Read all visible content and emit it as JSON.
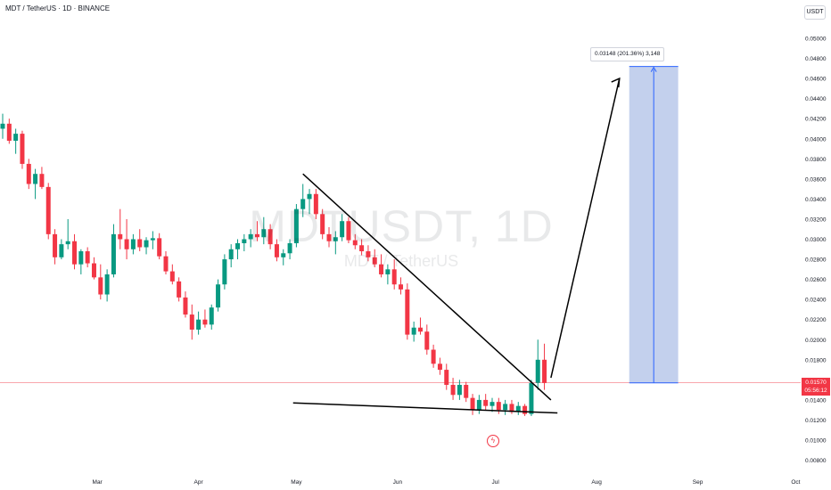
{
  "header": {
    "title": "MDT / TetherUS · 1D · BINANCE"
  },
  "currency_badge": "USDT",
  "watermark": {
    "symbol": "MDTUSDT, 1D",
    "name": "MDT / TetherUS"
  },
  "target_label": "0.03148 (201.36%) 3,148",
  "current_price": {
    "price": "0.01570",
    "countdown": "05:56:12"
  },
  "icons": {
    "flash": "flash-icon"
  },
  "colors": {
    "up": "#089981",
    "down": "#f23645",
    "target_fill": "#7b97d6",
    "target_line": "#2962ff",
    "price_line": "#f23645",
    "drawing": "#000000"
  },
  "chart_data": {
    "type": "candlestick",
    "timeframe": "1D",
    "exchange": "BINANCE",
    "y_axis": {
      "scale": "linear",
      "ticks": [
        "0.00800",
        "0.01000",
        "0.01200",
        "0.01400",
        "0.01600",
        "0.01800",
        "0.02000",
        "0.02200",
        "0.02400",
        "0.02600",
        "0.02800",
        "0.03000",
        "0.03200",
        "0.03400",
        "0.03600",
        "0.03800",
        "0.04000",
        "0.04200",
        "0.04400",
        "0.04600",
        "0.04800",
        "0.05000"
      ]
    },
    "x_axis": {
      "ticks": [
        "Mar",
        "Apr",
        "May",
        "Jun",
        "Jul",
        "Aug",
        "Sep",
        "Oct"
      ]
    },
    "grid": false,
    "candles": [
      {
        "d": "2024-02-01",
        "o": 0.041,
        "h": 0.0425,
        "l": 0.04,
        "c": 0.0415
      },
      {
        "d": "2024-02-03",
        "o": 0.0415,
        "h": 0.042,
        "l": 0.0395,
        "c": 0.0398
      },
      {
        "d": "2024-02-05",
        "o": 0.0398,
        "h": 0.041,
        "l": 0.0385,
        "c": 0.0405
      },
      {
        "d": "2024-02-07",
        "o": 0.0405,
        "h": 0.0408,
        "l": 0.037,
        "c": 0.0375
      },
      {
        "d": "2024-02-09",
        "o": 0.0375,
        "h": 0.038,
        "l": 0.035,
        "c": 0.0355
      },
      {
        "d": "2024-02-11",
        "o": 0.0355,
        "h": 0.037,
        "l": 0.034,
        "c": 0.0365
      },
      {
        "d": "2024-02-13",
        "o": 0.0365,
        "h": 0.0372,
        "l": 0.035,
        "c": 0.0352
      },
      {
        "d": "2024-02-15",
        "o": 0.0352,
        "h": 0.0356,
        "l": 0.03,
        "c": 0.0305
      },
      {
        "d": "2024-02-17",
        "o": 0.0305,
        "h": 0.031,
        "l": 0.0275,
        "c": 0.0282
      },
      {
        "d": "2024-02-19",
        "o": 0.0282,
        "h": 0.03,
        "l": 0.028,
        "c": 0.0295
      },
      {
        "d": "2024-02-21",
        "o": 0.0295,
        "h": 0.032,
        "l": 0.029,
        "c": 0.0298
      },
      {
        "d": "2024-02-23",
        "o": 0.0298,
        "h": 0.0305,
        "l": 0.027,
        "c": 0.0275
      },
      {
        "d": "2024-02-25",
        "o": 0.0275,
        "h": 0.029,
        "l": 0.0265,
        "c": 0.0288
      },
      {
        "d": "2024-02-27",
        "o": 0.0288,
        "h": 0.0292,
        "l": 0.0272,
        "c": 0.0276
      },
      {
        "d": "2024-02-29",
        "o": 0.0276,
        "h": 0.0282,
        "l": 0.026,
        "c": 0.0262
      },
      {
        "d": "2024-03-02",
        "o": 0.0262,
        "h": 0.0275,
        "l": 0.024,
        "c": 0.0245
      },
      {
        "d": "2024-03-04",
        "o": 0.0245,
        "h": 0.027,
        "l": 0.0238,
        "c": 0.0265
      },
      {
        "d": "2024-03-06",
        "o": 0.0265,
        "h": 0.0315,
        "l": 0.0262,
        "c": 0.0305
      },
      {
        "d": "2024-03-08",
        "o": 0.0305,
        "h": 0.033,
        "l": 0.029,
        "c": 0.03
      },
      {
        "d": "2024-03-10",
        "o": 0.03,
        "h": 0.032,
        "l": 0.028,
        "c": 0.029
      },
      {
        "d": "2024-03-12",
        "o": 0.029,
        "h": 0.0305,
        "l": 0.0285,
        "c": 0.03
      },
      {
        "d": "2024-03-14",
        "o": 0.03,
        "h": 0.031,
        "l": 0.0288,
        "c": 0.0292
      },
      {
        "d": "2024-03-16",
        "o": 0.0292,
        "h": 0.0302,
        "l": 0.0285,
        "c": 0.0299
      },
      {
        "d": "2024-03-18",
        "o": 0.0299,
        "h": 0.0308,
        "l": 0.029,
        "c": 0.0301
      },
      {
        "d": "2024-03-20",
        "o": 0.0301,
        "h": 0.0306,
        "l": 0.028,
        "c": 0.0283
      },
      {
        "d": "2024-03-22",
        "o": 0.0283,
        "h": 0.0288,
        "l": 0.0265,
        "c": 0.0268
      },
      {
        "d": "2024-03-24",
        "o": 0.0268,
        "h": 0.0275,
        "l": 0.0255,
        "c": 0.0258
      },
      {
        "d": "2024-03-26",
        "o": 0.0258,
        "h": 0.0262,
        "l": 0.0238,
        "c": 0.0242
      },
      {
        "d": "2024-03-28",
        "o": 0.0242,
        "h": 0.0248,
        "l": 0.0222,
        "c": 0.0225
      },
      {
        "d": "2024-03-30",
        "o": 0.0225,
        "h": 0.0235,
        "l": 0.02,
        "c": 0.021
      },
      {
        "d": "2024-04-01",
        "o": 0.021,
        "h": 0.0228,
        "l": 0.0205,
        "c": 0.022
      },
      {
        "d": "2024-04-03",
        "o": 0.022,
        "h": 0.023,
        "l": 0.0212,
        "c": 0.0215
      },
      {
        "d": "2024-04-05",
        "o": 0.0215,
        "h": 0.0235,
        "l": 0.021,
        "c": 0.0232
      },
      {
        "d": "2024-04-07",
        "o": 0.0232,
        "h": 0.026,
        "l": 0.0228,
        "c": 0.0255
      },
      {
        "d": "2024-04-09",
        "o": 0.0255,
        "h": 0.0285,
        "l": 0.025,
        "c": 0.028
      },
      {
        "d": "2024-04-11",
        "o": 0.028,
        "h": 0.0295,
        "l": 0.0272,
        "c": 0.029
      },
      {
        "d": "2024-04-13",
        "o": 0.029,
        "h": 0.03,
        "l": 0.028,
        "c": 0.0296
      },
      {
        "d": "2024-04-15",
        "o": 0.0296,
        "h": 0.0305,
        "l": 0.0288,
        "c": 0.03
      },
      {
        "d": "2024-04-17",
        "o": 0.03,
        "h": 0.031,
        "l": 0.0292,
        "c": 0.0305
      },
      {
        "d": "2024-04-19",
        "o": 0.0305,
        "h": 0.0318,
        "l": 0.0298,
        "c": 0.0302
      },
      {
        "d": "2024-04-21",
        "o": 0.0302,
        "h": 0.0322,
        "l": 0.0295,
        "c": 0.031
      },
      {
        "d": "2024-04-23",
        "o": 0.031,
        "h": 0.0315,
        "l": 0.029,
        "c": 0.0295
      },
      {
        "d": "2024-04-25",
        "o": 0.0295,
        "h": 0.03,
        "l": 0.0278,
        "c": 0.0282
      },
      {
        "d": "2024-04-27",
        "o": 0.0282,
        "h": 0.029,
        "l": 0.0274,
        "c": 0.0286
      },
      {
        "d": "2024-04-29",
        "o": 0.0286,
        "h": 0.03,
        "l": 0.028,
        "c": 0.0296
      },
      {
        "d": "2024-05-01",
        "o": 0.0296,
        "h": 0.0335,
        "l": 0.0292,
        "c": 0.033
      },
      {
        "d": "2024-05-03",
        "o": 0.033,
        "h": 0.0355,
        "l": 0.0322,
        "c": 0.034
      },
      {
        "d": "2024-05-05",
        "o": 0.034,
        "h": 0.035,
        "l": 0.0325,
        "c": 0.0345
      },
      {
        "d": "2024-05-07",
        "o": 0.0345,
        "h": 0.035,
        "l": 0.032,
        "c": 0.0325
      },
      {
        "d": "2024-05-09",
        "o": 0.0325,
        "h": 0.033,
        "l": 0.03,
        "c": 0.0305
      },
      {
        "d": "2024-05-11",
        "o": 0.0305,
        "h": 0.0312,
        "l": 0.0292,
        "c": 0.0298
      },
      {
        "d": "2024-05-13",
        "o": 0.0298,
        "h": 0.0308,
        "l": 0.0285,
        "c": 0.0302
      },
      {
        "d": "2024-05-15",
        "o": 0.0302,
        "h": 0.0325,
        "l": 0.0298,
        "c": 0.0318
      },
      {
        "d": "2024-05-17",
        "o": 0.0318,
        "h": 0.0322,
        "l": 0.0296,
        "c": 0.0299
      },
      {
        "d": "2024-05-19",
        "o": 0.0299,
        "h": 0.0305,
        "l": 0.029,
        "c": 0.0294
      },
      {
        "d": "2024-05-21",
        "o": 0.0294,
        "h": 0.03,
        "l": 0.0284,
        "c": 0.0288
      },
      {
        "d": "2024-05-23",
        "o": 0.0288,
        "h": 0.0294,
        "l": 0.0278,
        "c": 0.0282
      },
      {
        "d": "2024-05-25",
        "o": 0.0282,
        "h": 0.029,
        "l": 0.0272,
        "c": 0.0275
      },
      {
        "d": "2024-05-27",
        "o": 0.0275,
        "h": 0.0285,
        "l": 0.0262,
        "c": 0.0265
      },
      {
        "d": "2024-05-29",
        "o": 0.0265,
        "h": 0.0275,
        "l": 0.0255,
        "c": 0.027
      },
      {
        "d": "2024-05-31",
        "o": 0.027,
        "h": 0.028,
        "l": 0.025,
        "c": 0.0255
      },
      {
        "d": "2024-06-02",
        "o": 0.0255,
        "h": 0.0262,
        "l": 0.0245,
        "c": 0.025
      },
      {
        "d": "2024-06-04",
        "o": 0.025,
        "h": 0.0256,
        "l": 0.02,
        "c": 0.0205
      },
      {
        "d": "2024-06-06",
        "o": 0.0205,
        "h": 0.0218,
        "l": 0.0198,
        "c": 0.0212
      },
      {
        "d": "2024-06-08",
        "o": 0.0212,
        "h": 0.0222,
        "l": 0.0205,
        "c": 0.0208
      },
      {
        "d": "2024-06-10",
        "o": 0.0208,
        "h": 0.0215,
        "l": 0.0185,
        "c": 0.019
      },
      {
        "d": "2024-06-12",
        "o": 0.019,
        "h": 0.0195,
        "l": 0.0172,
        "c": 0.0176
      },
      {
        "d": "2024-06-14",
        "o": 0.0176,
        "h": 0.0182,
        "l": 0.0165,
        "c": 0.017
      },
      {
        "d": "2024-06-16",
        "o": 0.017,
        "h": 0.0176,
        "l": 0.015,
        "c": 0.0155
      },
      {
        "d": "2024-06-18",
        "o": 0.0155,
        "h": 0.0162,
        "l": 0.014,
        "c": 0.0145
      },
      {
        "d": "2024-06-20",
        "o": 0.0145,
        "h": 0.016,
        "l": 0.014,
        "c": 0.0155
      },
      {
        "d": "2024-06-22",
        "o": 0.0155,
        "h": 0.0158,
        "l": 0.0138,
        "c": 0.0142
      },
      {
        "d": "2024-06-24",
        "o": 0.0142,
        "h": 0.0146,
        "l": 0.0125,
        "c": 0.013
      },
      {
        "d": "2024-06-26",
        "o": 0.013,
        "h": 0.0145,
        "l": 0.0126,
        "c": 0.014
      },
      {
        "d": "2024-06-28",
        "o": 0.014,
        "h": 0.0146,
        "l": 0.013,
        "c": 0.0134
      },
      {
        "d": "2024-06-30",
        "o": 0.0134,
        "h": 0.0142,
        "l": 0.0128,
        "c": 0.0138
      },
      {
        "d": "2024-07-02",
        "o": 0.0138,
        "h": 0.0142,
        "l": 0.0126,
        "c": 0.013
      },
      {
        "d": "2024-07-04",
        "o": 0.013,
        "h": 0.014,
        "l": 0.0125,
        "c": 0.0136
      },
      {
        "d": "2024-07-06",
        "o": 0.0136,
        "h": 0.014,
        "l": 0.0126,
        "c": 0.0128
      },
      {
        "d": "2024-07-08",
        "o": 0.0128,
        "h": 0.0138,
        "l": 0.0125,
        "c": 0.0134
      },
      {
        "d": "2024-07-10",
        "o": 0.0134,
        "h": 0.0136,
        "l": 0.0124,
        "c": 0.0126
      },
      {
        "d": "2024-07-12",
        "o": 0.0126,
        "h": 0.016,
        "l": 0.0124,
        "c": 0.0157
      },
      {
        "d": "2024-07-14",
        "o": 0.0157,
        "h": 0.02,
        "l": 0.015,
        "c": 0.018
      },
      {
        "d": "2024-07-16",
        "o": 0.018,
        "h": 0.0196,
        "l": 0.015,
        "c": 0.0157
      }
    ],
    "annotations": {
      "resistance_trendline": [
        [
          "2024-05-03",
          0.0365
        ],
        [
          "2024-07-18",
          0.014
        ]
      ],
      "support_line": [
        [
          "2024-04-30",
          0.0137
        ],
        [
          "2024-07-20",
          0.0127
        ]
      ],
      "arrow": [
        [
          "2024-07-18",
          0.0162
        ],
        [
          "2024-08-08",
          0.046
        ]
      ],
      "target_box": {
        "x0": "2024-08-11",
        "x1": "2024-08-26",
        "y0": 0.0157,
        "y1": 0.0472
      }
    },
    "current_price": 0.0157
  }
}
